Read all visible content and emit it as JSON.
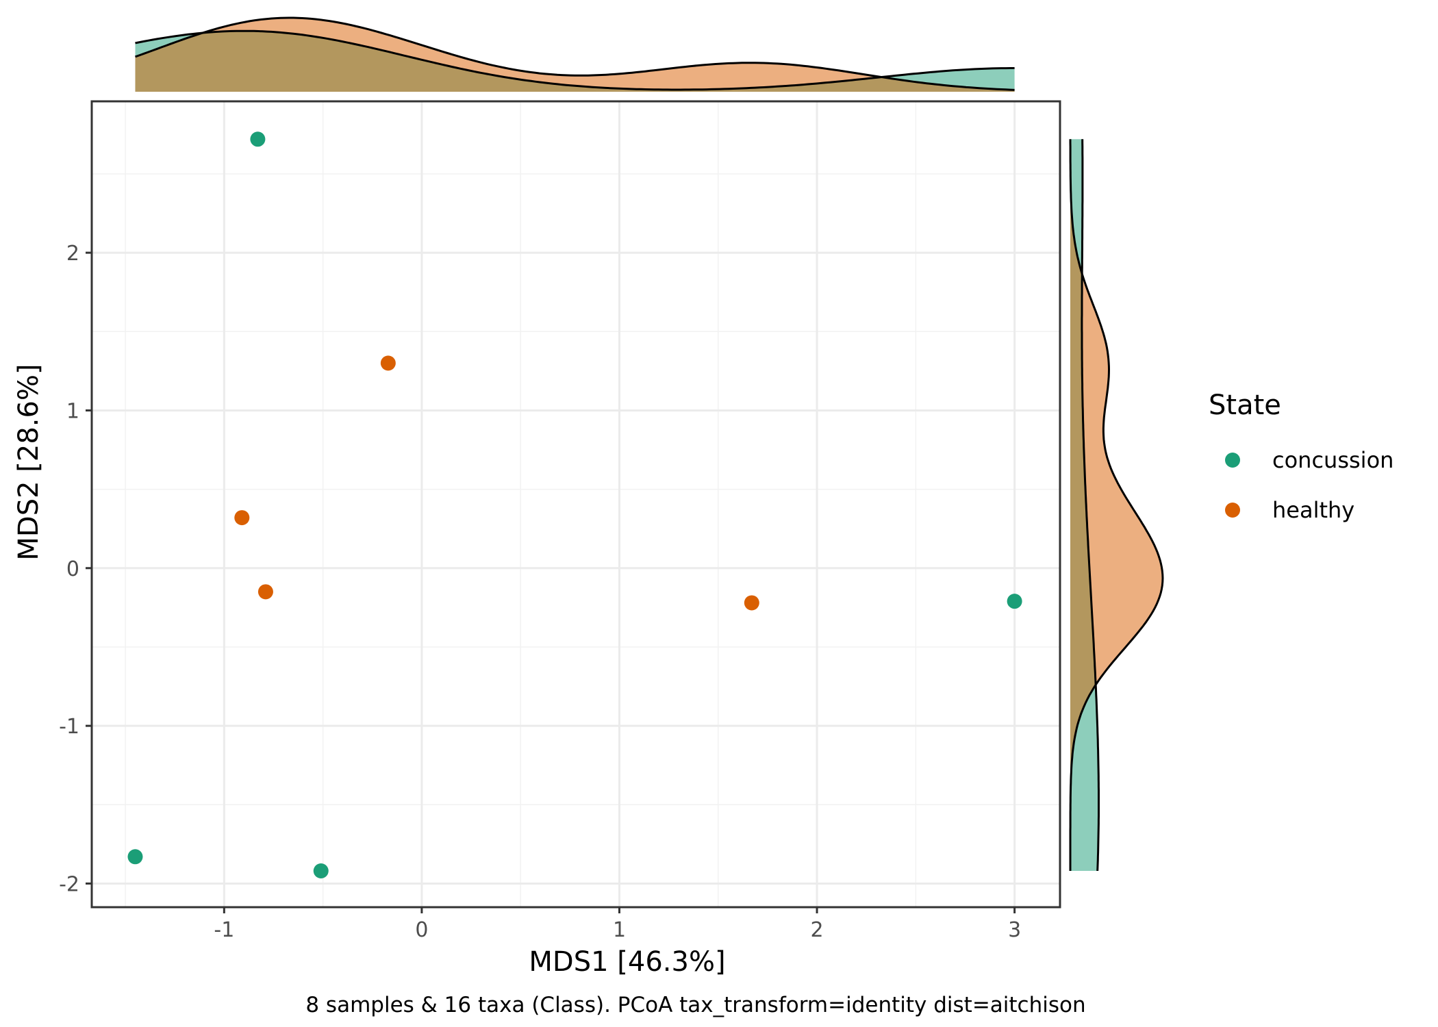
{
  "chart_data": {
    "type": "scatter",
    "xlabel": "MDS1 [46.3%]",
    "ylabel": "MDS2 [28.6%]",
    "caption": "8 samples & 16 taxa (Class). PCoA tax_transform=identity dist=aitchison",
    "xlim": [
      -1.67,
      3.23
    ],
    "ylim": [
      -2.15,
      2.96
    ],
    "x_ticks": [
      -1,
      0,
      1,
      2,
      3
    ],
    "y_ticks": [
      -2,
      -1,
      0,
      1,
      2
    ],
    "x_tick_labels": [
      "-1",
      "0",
      "1",
      "2",
      "3"
    ],
    "y_tick_labels": [
      "-2",
      "-1",
      "0",
      "1",
      "2"
    ],
    "grid": true,
    "marginal_density": {
      "top": true,
      "right": true
    },
    "legend": {
      "title": "State",
      "position": "right",
      "entries": [
        "concussion",
        "healthy"
      ]
    },
    "series": [
      {
        "name": "concussion",
        "color": "#1b9e77",
        "fill": "#8dcfbb",
        "points": [
          {
            "x": -0.83,
            "y": 2.72
          },
          {
            "x": -1.45,
            "y": -1.83
          },
          {
            "x": -0.51,
            "y": -1.92
          },
          {
            "x": 3.0,
            "y": -0.21
          }
        ]
      },
      {
        "name": "healthy",
        "color": "#d95f02",
        "fill": "#ecaf80",
        "points": [
          {
            "x": -0.17,
            "y": 1.3
          },
          {
            "x": -0.91,
            "y": 0.32
          },
          {
            "x": -0.79,
            "y": -0.15
          },
          {
            "x": 1.67,
            "y": -0.22
          }
        ]
      }
    ]
  }
}
